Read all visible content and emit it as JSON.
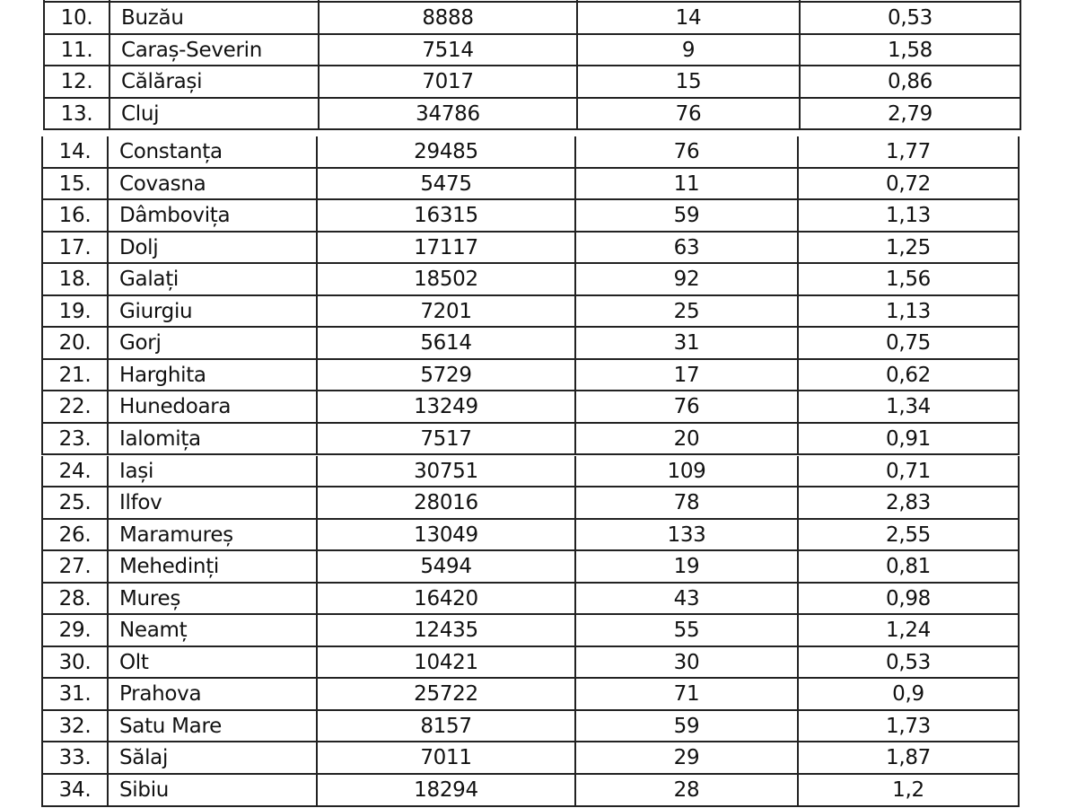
{
  "table_top": {
    "rows": [
      {
        "no": "10.",
        "county": "Buzău",
        "col3": "8888",
        "col4": "14",
        "col5": "0,53"
      },
      {
        "no": "11.",
        "county": "Caraș-Severin",
        "col3": "7514",
        "col4": "9",
        "col5": "1,58"
      },
      {
        "no": "12.",
        "county": "Călărași",
        "col3": "7017",
        "col4": "15",
        "col5": "0,86"
      },
      {
        "no": "13.",
        "county": "Cluj",
        "col3": "34786",
        "col4": "76",
        "col5": "2,79"
      }
    ]
  },
  "table_bottom": {
    "rows": [
      {
        "no": "14.",
        "county": "Constanța",
        "col3": "29485",
        "col4": "76",
        "col5": "1,77"
      },
      {
        "no": "15.",
        "county": "Covasna",
        "col3": "5475",
        "col4": "11",
        "col5": "0,72"
      },
      {
        "no": "16.",
        "county": "Dâmbovița",
        "col3": "16315",
        "col4": "59",
        "col5": "1,13"
      },
      {
        "no": "17.",
        "county": "Dolj",
        "col3": "17117",
        "col4": "63",
        "col5": "1,25"
      },
      {
        "no": "18.",
        "county": "Galați",
        "col3": "18502",
        "col4": "92",
        "col5": "1,56"
      },
      {
        "no": "19.",
        "county": "Giurgiu",
        "col3": "7201",
        "col4": "25",
        "col5": "1,13"
      },
      {
        "no": "20.",
        "county": "Gorj",
        "col3": "5614",
        "col4": "31",
        "col5": "0,75"
      },
      {
        "no": "21.",
        "county": "Harghita",
        "col3": "5729",
        "col4": "17",
        "col5": "0,62"
      },
      {
        "no": "22.",
        "county": "Hunedoara",
        "col3": "13249",
        "col4": "76",
        "col5": "1,34"
      },
      {
        "no": "23.",
        "county": "Ialomița",
        "col3": "7517",
        "col4": "20",
        "col5": "0,91"
      },
      {
        "no": "24.",
        "county": "Iași",
        "col3": "30751",
        "col4": "109",
        "col5": "0,71"
      },
      {
        "no": "25.",
        "county": "Ilfov",
        "col3": "28016",
        "col4": "78",
        "col5": "2,83"
      },
      {
        "no": "26.",
        "county": "Maramureș",
        "col3": "13049",
        "col4": "133",
        "col5": "2,55"
      },
      {
        "no": "27.",
        "county": "Mehedinți",
        "col3": "5494",
        "col4": "19",
        "col5": "0,81"
      },
      {
        "no": "28.",
        "county": "Mureș",
        "col3": "16420",
        "col4": "43",
        "col5": "0,98"
      },
      {
        "no": "29.",
        "county": "Neamț",
        "col3": "12435",
        "col4": "55",
        "col5": "1,24"
      },
      {
        "no": "30.",
        "county": "Olt",
        "col3": "10421",
        "col4": "30",
        "col5": "0,53"
      },
      {
        "no": "31.",
        "county": "Prahova",
        "col3": "25722",
        "col4": "71",
        "col5": "0,9"
      },
      {
        "no": "32.",
        "county": "Satu Mare",
        "col3": "8157",
        "col4": "59",
        "col5": "1,73"
      },
      {
        "no": "33.",
        "county": "Sălaj",
        "col3": "7011",
        "col4": "29",
        "col5": "1,87"
      },
      {
        "no": "34.",
        "county": "Sibiu",
        "col3": "18294",
        "col4": "28",
        "col5": "1,2"
      }
    ]
  }
}
